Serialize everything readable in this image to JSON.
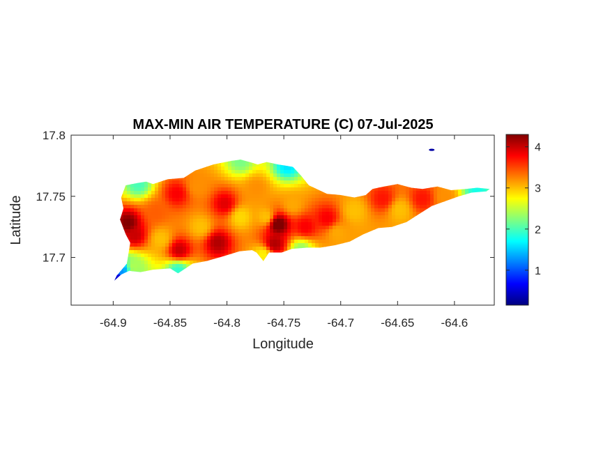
{
  "chart_data": {
    "type": "heatmap",
    "title": "MAX-MIN AIR TEMPERATURE (C) 07-Jul-2025",
    "xlabel": "Longitude",
    "ylabel": "Latitude",
    "xlim": [
      -64.937,
      -64.565
    ],
    "ylim": [
      17.661,
      17.8
    ],
    "x_ticks": [
      {
        "value": -64.9,
        "label": "-64.9"
      },
      {
        "value": -64.85,
        "label": "-64.85"
      },
      {
        "value": -64.8,
        "label": "-64.8"
      },
      {
        "value": -64.75,
        "label": "-64.75"
      },
      {
        "value": -64.7,
        "label": "-64.7"
      },
      {
        "value": -64.65,
        "label": "-64.65"
      },
      {
        "value": -64.6,
        "label": "-64.6"
      }
    ],
    "y_ticks": [
      {
        "value": 17.7,
        "label": "17.7"
      },
      {
        "value": 17.75,
        "label": "17.75"
      },
      {
        "value": 17.8,
        "label": "17.8"
      }
    ],
    "colorbar": {
      "colormap": "jet",
      "min": 0.15,
      "max": 4.3,
      "ticks": [
        {
          "value": 1,
          "label": "1"
        },
        {
          "value": 2,
          "label": "2"
        },
        {
          "value": 3,
          "label": "3"
        },
        {
          "value": 4,
          "label": "4"
        }
      ]
    },
    "background_value": 3.05,
    "island_outline": [
      [
        -64.893,
        17.749
      ],
      [
        -64.889,
        17.759
      ],
      [
        -64.878,
        17.761
      ],
      [
        -64.871,
        17.762
      ],
      [
        -64.865,
        17.76
      ],
      [
        -64.852,
        17.764
      ],
      [
        -64.838,
        17.765
      ],
      [
        -64.828,
        17.771
      ],
      [
        -64.812,
        17.776
      ],
      [
        -64.796,
        17.779
      ],
      [
        -64.788,
        17.78
      ],
      [
        -64.78,
        17.778
      ],
      [
        -64.773,
        17.776
      ],
      [
        -64.765,
        17.778
      ],
      [
        -64.755,
        17.776
      ],
      [
        -64.748,
        17.775
      ],
      [
        -64.742,
        17.774
      ],
      [
        -64.735,
        17.767
      ],
      [
        -64.728,
        17.759
      ],
      [
        -64.712,
        17.752
      ],
      [
        -64.7,
        17.751
      ],
      [
        -64.688,
        17.749
      ],
      [
        -64.678,
        17.751
      ],
      [
        -64.672,
        17.756
      ],
      [
        -64.662,
        17.758
      ],
      [
        -64.65,
        17.76
      ],
      [
        -64.638,
        17.757
      ],
      [
        -64.628,
        17.756
      ],
      [
        -64.615,
        17.758
      ],
      [
        -64.603,
        17.755
      ],
      [
        -64.59,
        17.756
      ],
      [
        -64.58,
        17.757
      ],
      [
        -64.569,
        17.756
      ],
      [
        -64.572,
        17.754
      ],
      [
        -64.585,
        17.753
      ],
      [
        -64.596,
        17.75
      ],
      [
        -64.608,
        17.746
      ],
      [
        -64.62,
        17.742
      ],
      [
        -64.632,
        17.735
      ],
      [
        -64.642,
        17.729
      ],
      [
        -64.655,
        17.725
      ],
      [
        -64.667,
        17.724
      ],
      [
        -64.68,
        17.719
      ],
      [
        -64.692,
        17.713
      ],
      [
        -64.705,
        17.71
      ],
      [
        -64.718,
        17.708
      ],
      [
        -64.73,
        17.708
      ],
      [
        -64.743,
        17.707
      ],
      [
        -64.752,
        17.704
      ],
      [
        -64.763,
        17.704
      ],
      [
        -64.768,
        17.697
      ],
      [
        -64.774,
        17.704
      ],
      [
        -64.778,
        17.706
      ],
      [
        -64.789,
        17.705
      ],
      [
        -64.803,
        17.701
      ],
      [
        -64.818,
        17.697
      ],
      [
        -64.83,
        17.695
      ],
      [
        -64.843,
        17.687
      ],
      [
        -64.85,
        17.691
      ],
      [
        -64.865,
        17.69
      ],
      [
        -64.876,
        17.688
      ],
      [
        -64.886,
        17.689
      ],
      [
        -64.893,
        17.686
      ],
      [
        -64.899,
        17.681
      ],
      [
        -64.897,
        17.685
      ],
      [
        -64.888,
        17.695
      ],
      [
        -64.885,
        17.712
      ],
      [
        -64.889,
        17.719
      ],
      [
        -64.894,
        17.731
      ],
      [
        -64.891,
        17.74
      ]
    ],
    "islets": [
      {
        "lon": -64.62,
        "lat": 17.788,
        "value": 0.3
      }
    ],
    "temperature_points": [
      {
        "lon": -64.887,
        "lat": 17.728,
        "value": 4.3
      },
      {
        "lon": -64.881,
        "lat": 17.718,
        "value": 4.0
      },
      {
        "lon": -64.862,
        "lat": 17.737,
        "value": 3.4
      },
      {
        "lon": -64.844,
        "lat": 17.752,
        "value": 3.8
      },
      {
        "lon": -64.826,
        "lat": 17.758,
        "value": 3.2
      },
      {
        "lon": -64.858,
        "lat": 17.715,
        "value": 3.0
      },
      {
        "lon": -64.842,
        "lat": 17.706,
        "value": 4.0
      },
      {
        "lon": -64.823,
        "lat": 17.725,
        "value": 3.0
      },
      {
        "lon": -64.808,
        "lat": 17.712,
        "value": 4.1
      },
      {
        "lon": -64.802,
        "lat": 17.744,
        "value": 3.9
      },
      {
        "lon": -64.788,
        "lat": 17.733,
        "value": 2.9
      },
      {
        "lon": -64.774,
        "lat": 17.757,
        "value": 3.2
      },
      {
        "lon": -64.766,
        "lat": 17.733,
        "value": 3.0
      },
      {
        "lon": -64.755,
        "lat": 17.727,
        "value": 4.4
      },
      {
        "lon": -64.758,
        "lat": 17.711,
        "value": 4.1
      },
      {
        "lon": -64.742,
        "lat": 17.743,
        "value": 3.1
      },
      {
        "lon": -64.731,
        "lat": 17.725,
        "value": 3.8
      },
      {
        "lon": -64.712,
        "lat": 17.732,
        "value": 3.8
      },
      {
        "lon": -64.703,
        "lat": 17.72,
        "value": 3.1
      },
      {
        "lon": -64.688,
        "lat": 17.738,
        "value": 3.0
      },
      {
        "lon": -64.663,
        "lat": 17.748,
        "value": 3.7
      },
      {
        "lon": -64.648,
        "lat": 17.739,
        "value": 3.0
      },
      {
        "lon": -64.628,
        "lat": 17.748,
        "value": 3.7
      },
      {
        "lon": -64.608,
        "lat": 17.749,
        "value": 3.2
      },
      {
        "lon": -64.58,
        "lat": 17.755,
        "value": 1.8
      },
      {
        "lon": -64.878,
        "lat": 17.76,
        "value": 2.0
      },
      {
        "lon": -64.898,
        "lat": 17.683,
        "value": 0.4
      },
      {
        "lon": -64.893,
        "lat": 17.69,
        "value": 1.3
      },
      {
        "lon": -64.882,
        "lat": 17.693,
        "value": 2.4
      },
      {
        "lon": -64.843,
        "lat": 17.689,
        "value": 1.9
      },
      {
        "lon": -64.788,
        "lat": 17.779,
        "value": 2.2
      },
      {
        "lon": -64.747,
        "lat": 17.775,
        "value": 1.6
      },
      {
        "lon": -64.735,
        "lat": 17.706,
        "value": 2.3
      },
      {
        "lon": -64.768,
        "lat": 17.702,
        "value": 2.8
      }
    ]
  }
}
